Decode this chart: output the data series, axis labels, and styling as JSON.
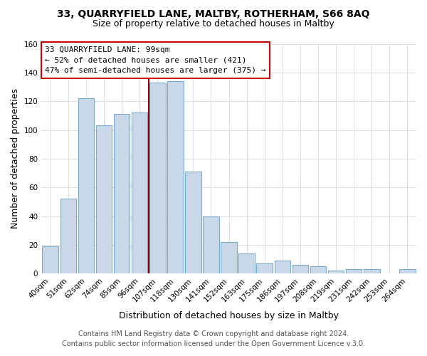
{
  "title": "33, QUARRYFIELD LANE, MALTBY, ROTHERHAM, S66 8AQ",
  "subtitle": "Size of property relative to detached houses in Maltby",
  "xlabel": "Distribution of detached houses by size in Maltby",
  "ylabel": "Number of detached properties",
  "bar_labels": [
    "40sqm",
    "51sqm",
    "62sqm",
    "74sqm",
    "85sqm",
    "96sqm",
    "107sqm",
    "118sqm",
    "130sqm",
    "141sqm",
    "152sqm",
    "163sqm",
    "175sqm",
    "186sqm",
    "197sqm",
    "208sqm",
    "219sqm",
    "231sqm",
    "242sqm",
    "253sqm",
    "264sqm"
  ],
  "bar_values": [
    19,
    52,
    122,
    103,
    111,
    112,
    133,
    134,
    71,
    40,
    22,
    14,
    7,
    9,
    6,
    5,
    2,
    3,
    3,
    0,
    3
  ],
  "bar_color": "#c8d8e8",
  "bar_edge_color": "#7aaac8",
  "ylim": [
    0,
    160
  ],
  "yticks": [
    0,
    20,
    40,
    60,
    80,
    100,
    120,
    140,
    160
  ],
  "property_line_x": 5.5,
  "property_line_color": "#8b0000",
  "annotation_title": "33 QUARRYFIELD LANE: 99sqm",
  "annotation_line1": "← 52% of detached houses are smaller (421)",
  "annotation_line2": "47% of semi-detached houses are larger (375) →",
  "annotation_box_color": "#ffffff",
  "annotation_box_edge": "#cc0000",
  "footer1": "Contains HM Land Registry data © Crown copyright and database right 2024.",
  "footer2": "Contains public sector information licensed under the Open Government Licence v.3.0.",
  "background_color": "#ffffff",
  "plot_bg_color": "#ffffff",
  "title_fontsize": 10,
  "subtitle_fontsize": 9,
  "axis_label_fontsize": 9,
  "tick_fontsize": 7.5,
  "footer_fontsize": 7
}
